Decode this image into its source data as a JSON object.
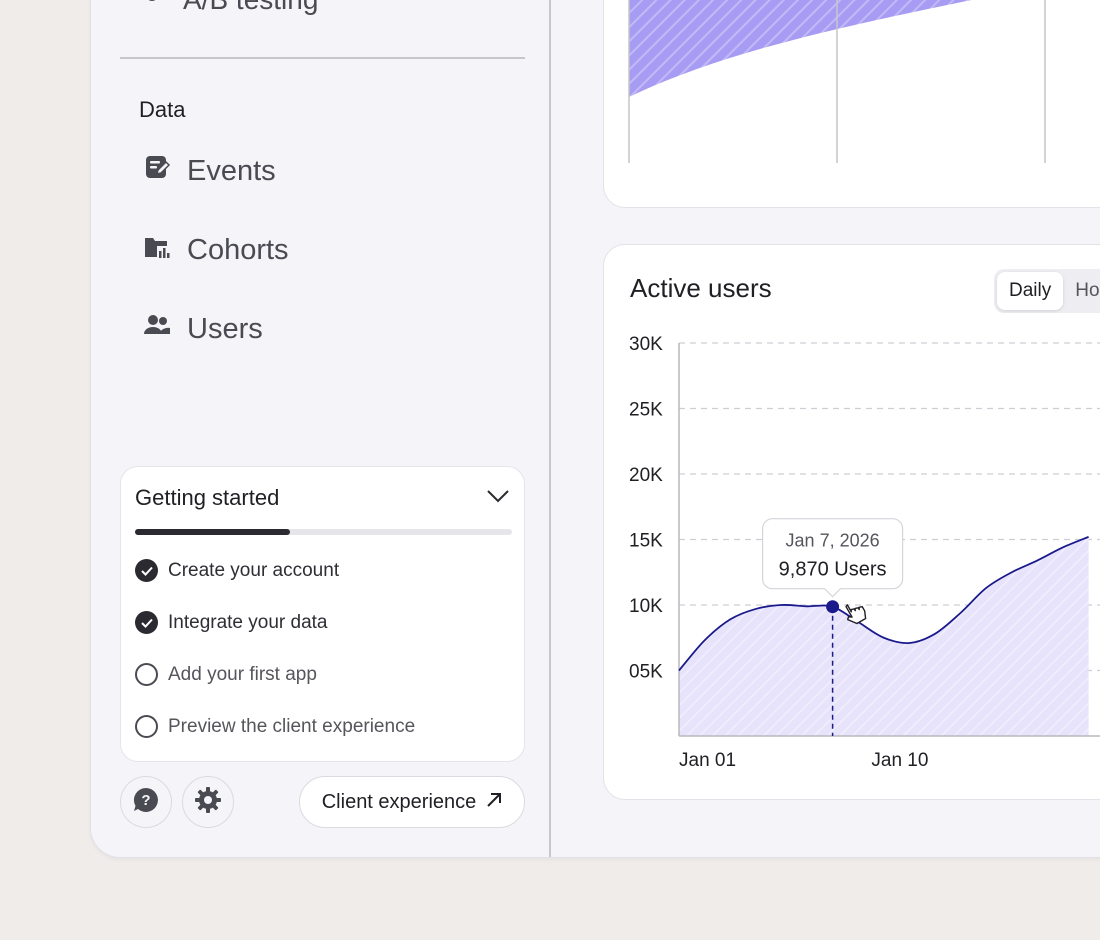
{
  "sidebar": {
    "top_item": "A/B testing",
    "section_label": "Data",
    "items": [
      {
        "label": "Events",
        "icon": "events-icon"
      },
      {
        "label": "Cohorts",
        "icon": "cohorts-icon"
      },
      {
        "label": "Users",
        "icon": "users-icon"
      }
    ],
    "getting_started": {
      "title": "Getting started",
      "progress": 0.41,
      "steps": [
        {
          "label": "Create your account",
          "done": true
        },
        {
          "label": "Integrate your data",
          "done": true
        },
        {
          "label": "Add your first app",
          "done": false
        },
        {
          "label": "Preview the client experience",
          "done": false
        }
      ]
    },
    "client_button_label": "Client experience"
  },
  "active_users": {
    "title": "Active users",
    "tabs": [
      "Daily",
      "Ho"
    ],
    "active_tab": "Daily",
    "tooltip": {
      "date": "Jan 7, 2026",
      "value": "9,870 Users"
    }
  },
  "colors": {
    "line": "#1a1a8c",
    "fill": "#e7e3fb",
    "top_area": "#8b7df0",
    "marker": "#1a1a8c"
  },
  "chart_data": {
    "type": "area",
    "title": "Active users",
    "xlabel": "",
    "ylabel": "",
    "x_ticks": [
      "Jan 01",
      "Jan 10"
    ],
    "y_ticks": [
      "05K",
      "10K",
      "15K",
      "20K",
      "25K",
      "30K"
    ],
    "ylim": [
      0,
      30000
    ],
    "grid": true,
    "x": [
      "Jan 01",
      "Jan 02",
      "Jan 03",
      "Jan 04",
      "Jan 05",
      "Jan 06",
      "Jan 07",
      "Jan 08",
      "Jan 09",
      "Jan 10",
      "Jan 11",
      "Jan 12",
      "Jan 13",
      "Jan 14",
      "Jan 15",
      "Jan 16",
      "Jan 17"
    ],
    "values": [
      5000,
      7300,
      8900,
      9700,
      10000,
      9900,
      9870,
      8700,
      7500,
      7100,
      7800,
      9400,
      11300,
      12500,
      13400,
      14400,
      15200
    ],
    "highlight": {
      "x": "Jan 07",
      "value": 9870
    }
  }
}
